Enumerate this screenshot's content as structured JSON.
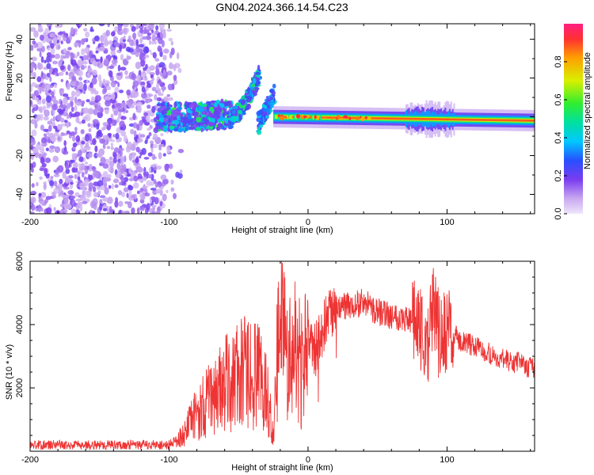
{
  "title": "GN04.2024.366.14.54.C23",
  "chart_data": [
    {
      "type": "heatmap",
      "xlabel": "Height of straight line (km)",
      "ylabel": "Frequency (Hz)",
      "xlim": [
        -200,
        163
      ],
      "ylim": [
        -50,
        48
      ],
      "xticks": [
        -200,
        -100,
        0,
        100
      ],
      "yticks": [
        -40,
        -20,
        0,
        20,
        40
      ],
      "colorbar": {
        "label": "Normalized spectral amplitude",
        "range": [
          0,
          1
        ],
        "ticks": [
          "0.0",
          "0.2",
          "0.4",
          "0.6",
          "0.8"
        ]
      },
      "features": [
        {
          "name": "noise",
          "x_range": [
            -200,
            -95
          ],
          "freq_range": [
            -50,
            48
          ],
          "amplitude": 0.1
        },
        {
          "name": "weak-band",
          "x_range": [
            -108,
            -55
          ],
          "center_freq": 0,
          "amplitude": 0.35
        },
        {
          "name": "rising-arc",
          "x_range": [
            -55,
            -35
          ],
          "freq_from": 0,
          "freq_to": 22,
          "amplitude": 0.4
        },
        {
          "name": "second-arc",
          "x_range": [
            -36,
            -24
          ],
          "freq_from": -4,
          "freq_to": 12,
          "amplitude": 0.35
        },
        {
          "name": "strong-band",
          "x_range": [
            -25,
            163
          ],
          "center_freq_from": 0,
          "center_freq_to": -2,
          "amplitude": 0.85
        }
      ]
    },
    {
      "type": "line",
      "xlabel": "Height of straight line (km)",
      "ylabel": "SNR (10 * v/v)",
      "xlim": [
        -200,
        163
      ],
      "ylim": [
        0,
        6000
      ],
      "xticks": [
        -200,
        -100,
        0,
        100
      ],
      "yticks": [
        2000,
        4000,
        6000
      ],
      "series": [
        {
          "color": "#ee3333",
          "x": [
            -200,
            -150,
            -100,
            -90,
            -80,
            -70,
            -60,
            -50,
            -40,
            -30,
            -25,
            -20,
            -15,
            -10,
            -5,
            0,
            5,
            10,
            15,
            20,
            30,
            40,
            50,
            60,
            70,
            80,
            85,
            90,
            95,
            100,
            110,
            120,
            130,
            140,
            150,
            163
          ],
          "y": [
            200,
            200,
            200,
            500,
            1200,
            1700,
            2100,
            2400,
            2500,
            2000,
            500,
            4800,
            3000,
            3500,
            2500,
            3500,
            3200,
            3800,
            4200,
            4500,
            4600,
            4700,
            4400,
            4300,
            4200,
            4000,
            3000,
            4500,
            3500,
            3800,
            3500,
            3300,
            3100,
            2900,
            2800,
            2600
          ]
        }
      ]
    }
  ]
}
